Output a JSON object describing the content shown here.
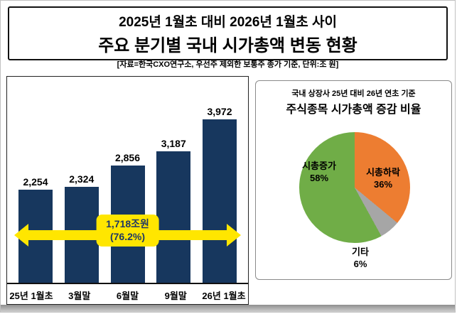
{
  "header": {
    "title_line1": "2025년 1월초 대비 2026년 1월초 사이",
    "title_line2": "주요 분기별 국내 시가총액 변동 현황",
    "source_note": "[자료=한국CXO연구소, 우선주 제외한 보통주 종가 기준, 단위:조 원]"
  },
  "colors": {
    "bar": "#17375E",
    "arrow": "#FFE600",
    "arrow_text": "#1F3864",
    "pie_increase": "#70AD47",
    "pie_decrease": "#ED7D31",
    "pie_etc": "#A6A6A6"
  },
  "chart_data": [
    {
      "type": "bar",
      "title": "주요 분기별 국내 시가총액 변동 현황",
      "unit": "조 원",
      "categories": [
        "25년 1월초",
        "3월말",
        "6월말",
        "9월말",
        "26년 1월초"
      ],
      "values": [
        2254,
        2324,
        2856,
        3187,
        3972
      ],
      "value_labels": [
        "2,254",
        "2,324",
        "2,856",
        "3,187",
        "3,972"
      ],
      "ylim": [
        0,
        3972
      ],
      "grid": false,
      "annotation": {
        "line1": "1,718조원",
        "line2": "(76.2%)"
      }
    },
    {
      "type": "pie",
      "title_line1": "국내 상장사 25년 대비 26년 연초 기준",
      "title_line2": "주식종목 시가총액 증감 비율",
      "start_angle_deg": 0,
      "direction": "clockwise",
      "slices": [
        {
          "label": "시총하락",
          "value": 36,
          "pct_label": "36%",
          "color": "#ED7D31"
        },
        {
          "label": "기타",
          "value": 6,
          "pct_label": "6%",
          "color": "#A6A6A6"
        },
        {
          "label": "시총증가",
          "value": 58,
          "pct_label": "58%",
          "color": "#70AD47"
        }
      ]
    }
  ]
}
